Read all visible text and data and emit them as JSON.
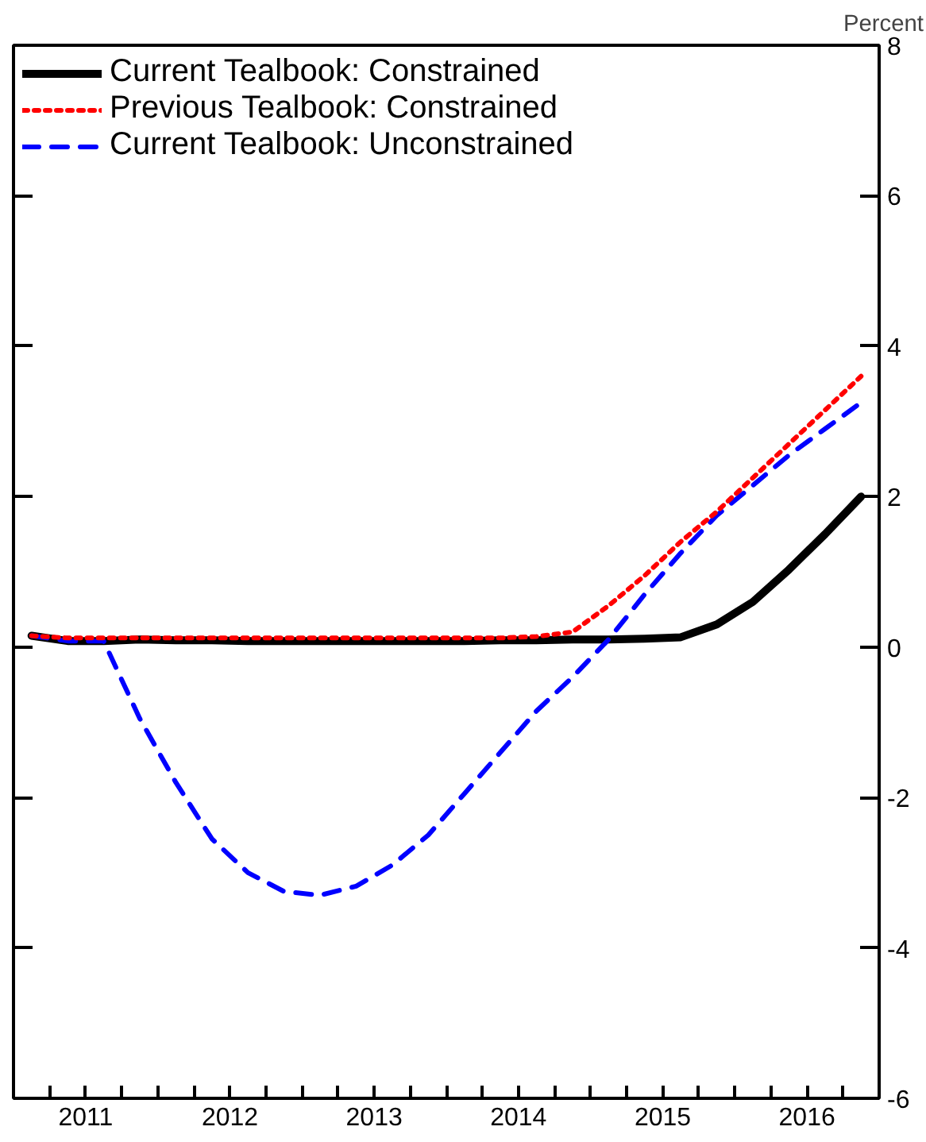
{
  "chart_data": {
    "type": "line",
    "ylabel": "Percent",
    "x": [
      2011.125,
      2011.375,
      2011.625,
      2011.875,
      2012.125,
      2012.375,
      2012.625,
      2012.875,
      2013.125,
      2013.375,
      2013.625,
      2013.875,
      2014.125,
      2014.375,
      2014.625,
      2014.875,
      2015.125,
      2015.375,
      2015.625,
      2015.875,
      2016.125,
      2016.375,
      2016.625,
      2016.875
    ],
    "series": [
      {
        "name": "Current Tealbook: Constrained",
        "color": "#000000",
        "line_style": "solid",
        "values": [
          0.15,
          0.08,
          0.08,
          0.1,
          0.09,
          0.09,
          0.08,
          0.08,
          0.08,
          0.08,
          0.08,
          0.08,
          0.08,
          0.09,
          0.09,
          0.1,
          0.1,
          0.11,
          0.13,
          0.3,
          0.6,
          1.03,
          1.5,
          2.0
        ]
      },
      {
        "name": "Previous Tealbook: Constrained",
        "color": "#ff0000",
        "line_style": "dotted",
        "values": [
          0.15,
          0.12,
          0.12,
          0.12,
          0.12,
          0.12,
          0.12,
          0.12,
          0.12,
          0.12,
          0.12,
          0.12,
          0.12,
          0.12,
          0.14,
          0.2,
          0.55,
          0.95,
          1.4,
          1.8,
          2.25,
          2.7,
          3.15,
          3.6
        ]
      },
      {
        "name": "Current Tealbook: Unconstrained",
        "color": "#0000ff",
        "line_style": "dashed",
        "values": [
          0.15,
          0.08,
          0.08,
          -0.95,
          -1.8,
          -2.55,
          -3.0,
          -3.25,
          -3.3,
          -3.18,
          -2.9,
          -2.5,
          -1.95,
          -1.4,
          -0.85,
          -0.4,
          0.1,
          0.7,
          1.25,
          1.75,
          2.15,
          2.55,
          2.9,
          3.25
        ]
      }
    ],
    "xlim": [
      2011,
      2017
    ],
    "xticks": [
      {
        "value": 2011,
        "label": null
      },
      {
        "value": 2011.25,
        "label": null
      },
      {
        "value": 2011.5,
        "label": "2011"
      },
      {
        "value": 2011.75,
        "label": null
      },
      {
        "value": 2012,
        "label": null
      },
      {
        "value": 2012.25,
        "label": null
      },
      {
        "value": 2012.5,
        "label": "2012"
      },
      {
        "value": 2012.75,
        "label": null
      },
      {
        "value": 2013,
        "label": null
      },
      {
        "value": 2013.25,
        "label": null
      },
      {
        "value": 2013.5,
        "label": "2013"
      },
      {
        "value": 2013.75,
        "label": null
      },
      {
        "value": 2014,
        "label": null
      },
      {
        "value": 2014.25,
        "label": null
      },
      {
        "value": 2014.5,
        "label": "2014"
      },
      {
        "value": 2014.75,
        "label": null
      },
      {
        "value": 2015,
        "label": null
      },
      {
        "value": 2015.25,
        "label": null
      },
      {
        "value": 2015.5,
        "label": "2015"
      },
      {
        "value": 2015.75,
        "label": null
      },
      {
        "value": 2016,
        "label": null
      },
      {
        "value": 2016.25,
        "label": null
      },
      {
        "value": 2016.5,
        "label": "2016"
      },
      {
        "value": 2016.75,
        "label": null
      },
      {
        "value": 2017,
        "label": null
      }
    ],
    "ylim": [
      -6,
      8
    ],
    "yticks": [
      -6,
      -4,
      -2,
      0,
      2,
      4,
      6,
      8
    ],
    "grid": false,
    "legend": "top left",
    "marker": "none"
  }
}
